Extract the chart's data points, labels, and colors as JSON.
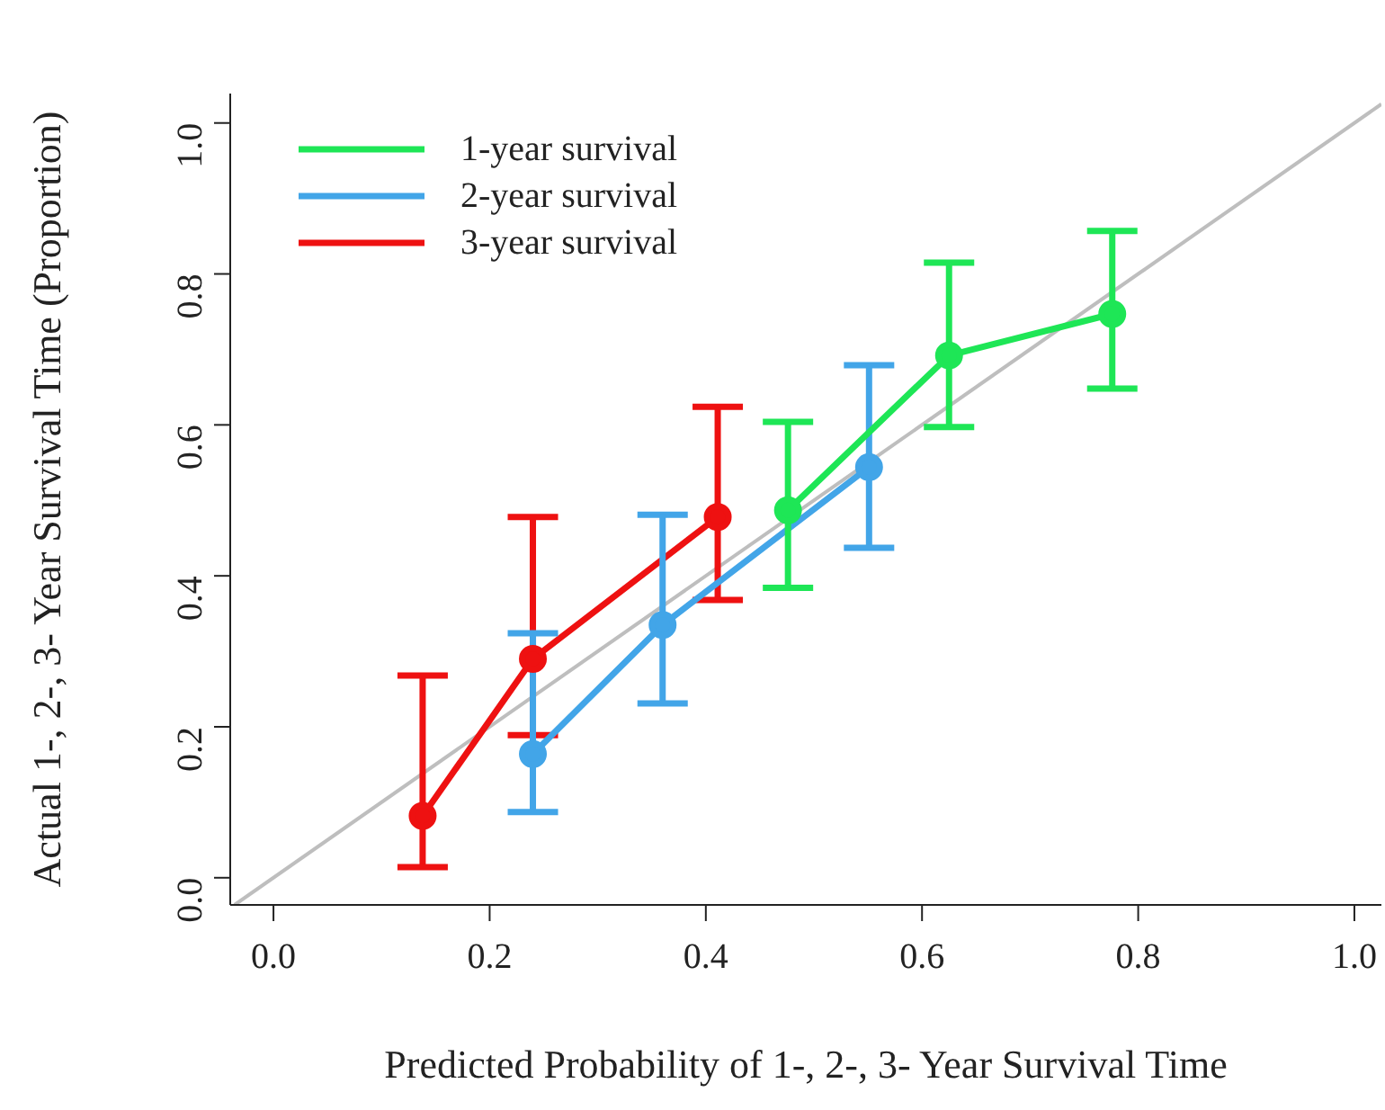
{
  "chart_data": {
    "type": "line",
    "xlabel": "Predicted Probability of 1-, 2-, 3- Year Survival Time",
    "ylabel": "Actual 1-, 2-, 3- Year Survival Time (Proportion)",
    "xlim": [
      -0.04,
      1.025
    ],
    "ylim": [
      -0.036,
      1.039
    ],
    "xticks": [
      {
        "value": 0,
        "label": "0.0"
      },
      0.2,
      0.4,
      0.6,
      0.8,
      {
        "value": 1,
        "label": "1.0"
      }
    ],
    "yticks": [
      {
        "value": 0,
        "label": "0.0"
      },
      0.2,
      0.4,
      0.6,
      0.8,
      {
        "value": 1,
        "label": "1.0"
      }
    ],
    "legend": "top left",
    "marker": "circle",
    "grid": false,
    "series": [
      {
        "name": "1-year survival",
        "color": "#1ee656",
        "x": [
          0.476,
          0.625,
          0.776
        ],
        "values": [
          0.487,
          0.692,
          0.747
        ],
        "errors": [
          [
            0.384,
            0.604
          ],
          [
            0.597,
            0.815
          ],
          [
            0.648,
            0.857
          ]
        ]
      },
      {
        "name": "2-year survival",
        "color": "#42a5e8",
        "x": [
          0.24,
          0.36,
          0.551
        ],
        "values": [
          0.164,
          0.335,
          0.544
        ],
        "errors": [
          [
            0.087,
            0.324
          ],
          [
            0.231,
            0.481
          ],
          [
            0.437,
            0.679
          ]
        ]
      },
      {
        "name": "3-year survival",
        "color": "#ee1111",
        "x": [
          0.138,
          0.24,
          0.411
        ],
        "values": [
          0.082,
          0.29,
          0.478
        ],
        "errors": [
          [
            0.014,
            0.268
          ],
          [
            0.189,
            0.478
          ],
          [
            0.368,
            0.624
          ]
        ]
      },
      {
        "color": "#bebebe",
        "marker": "none",
        "x": [
          -0.036,
          1.025
        ],
        "values": [
          -0.036,
          1.025
        ]
      }
    ]
  }
}
